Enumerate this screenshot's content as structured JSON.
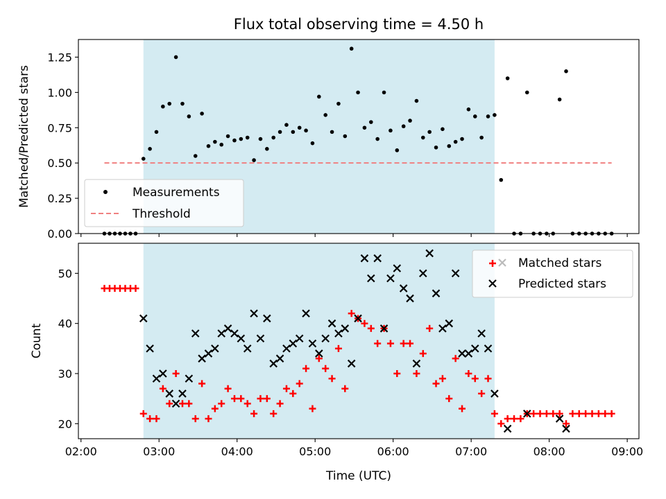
{
  "title": "Flux total observing time = 4.50 h",
  "xlabel": "Time (UTC)",
  "x_tick_labels": [
    "02:00",
    "03:00",
    "04:00",
    "05:00",
    "06:00",
    "07:00",
    "08:00",
    "09:00"
  ],
  "highlight_span": {
    "start": "02:48",
    "end": "07:18",
    "color": "#add8e6"
  },
  "chart_data": [
    {
      "type": "scatter",
      "ylabel": "Matched/Predicted stars",
      "xlim": [
        "01:58",
        "09:09"
      ],
      "ylim": [
        0,
        1.375
      ],
      "y_ticks": [
        0.0,
        0.25,
        0.5,
        0.75,
        1.0,
        1.25
      ],
      "y_tick_labels": [
        "0.00",
        "0.25",
        "0.50",
        "0.75",
        "1.00",
        "1.25"
      ],
      "legend": {
        "position": "lower-left",
        "entries": [
          "Measurements",
          "Threshold"
        ]
      },
      "series": [
        {
          "name": "Measurements",
          "color": "#000000",
          "marker": "dot",
          "x": [
            "02:18",
            "02:22",
            "02:26",
            "02:30",
            "02:34",
            "02:38",
            "02:42",
            "02:48",
            "02:53",
            "02:58",
            "03:03",
            "03:08",
            "03:13",
            "03:18",
            "03:23",
            "03:28",
            "03:33",
            "03:38",
            "03:43",
            "03:48",
            "03:53",
            "03:58",
            "04:03",
            "04:08",
            "04:13",
            "04:18",
            "04:23",
            "04:28",
            "04:33",
            "04:38",
            "04:43",
            "04:48",
            "04:53",
            "04:58",
            "05:03",
            "05:08",
            "05:13",
            "05:18",
            "05:23",
            "05:28",
            "05:33",
            "05:38",
            "05:43",
            "05:48",
            "05:53",
            "05:58",
            "06:03",
            "06:08",
            "06:13",
            "06:18",
            "06:23",
            "06:28",
            "06:33",
            "06:38",
            "06:43",
            "06:48",
            "06:53",
            "06:58",
            "07:03",
            "07:08",
            "07:13",
            "07:18",
            "07:23",
            "07:28",
            "07:33",
            "07:38",
            "07:43",
            "07:48",
            "07:53",
            "07:58",
            "08:03",
            "08:08",
            "08:13",
            "08:18",
            "08:23",
            "08:28",
            "08:33",
            "08:38",
            "08:43",
            "08:48"
          ],
          "values": [
            0,
            0,
            0,
            0,
            0,
            0,
            0,
            0.53,
            0.6,
            0.72,
            0.9,
            0.92,
            1.25,
            0.92,
            0.83,
            0.55,
            0.85,
            0.62,
            0.65,
            0.63,
            0.69,
            0.66,
            0.67,
            0.68,
            0.52,
            0.67,
            0.6,
            0.68,
            0.72,
            0.77,
            0.72,
            0.75,
            0.73,
            0.64,
            0.97,
            0.84,
            0.72,
            0.92,
            0.69,
            1.31,
            1.0,
            0.75,
            0.79,
            0.67,
            1.0,
            0.73,
            0.59,
            0.76,
            0.8,
            0.94,
            0.68,
            0.72,
            0.61,
            0.74,
            0.62,
            0.65,
            0.67,
            0.88,
            0.83,
            0.68,
            0.83,
            0.84,
            0.38,
            1.1,
            0,
            0,
            1.0,
            0,
            0,
            0,
            0,
            0.95,
            1.15,
            0,
            0,
            0,
            0,
            0,
            0,
            0
          ]
        },
        {
          "name": "Threshold",
          "color": "#f08080",
          "style": "dashed",
          "x": [
            "02:18",
            "08:48"
          ],
          "values": [
            0.5,
            0.5
          ]
        }
      ]
    },
    {
      "type": "scatter",
      "ylabel": "Count",
      "xlim": [
        "01:58",
        "09:09"
      ],
      "ylim": [
        17,
        56
      ],
      "y_ticks": [
        20,
        30,
        40,
        50
      ],
      "y_tick_labels": [
        "20",
        "30",
        "40",
        "50"
      ],
      "legend": {
        "position": "top-right",
        "entries": [
          "Matched stars",
          "Predicted stars"
        ]
      },
      "series": [
        {
          "name": "Matched stars",
          "color": "#ff0000",
          "marker": "plus",
          "x": [
            "02:18",
            "02:22",
            "02:26",
            "02:30",
            "02:34",
            "02:38",
            "02:42",
            "02:48",
            "02:53",
            "02:58",
            "03:03",
            "03:08",
            "03:13",
            "03:18",
            "03:23",
            "03:28",
            "03:33",
            "03:38",
            "03:43",
            "03:48",
            "03:53",
            "03:58",
            "04:03",
            "04:08",
            "04:13",
            "04:18",
            "04:23",
            "04:28",
            "04:33",
            "04:38",
            "04:43",
            "04:48",
            "04:53",
            "04:58",
            "05:03",
            "05:08",
            "05:13",
            "05:18",
            "05:23",
            "05:28",
            "05:33",
            "05:38",
            "05:43",
            "05:48",
            "05:53",
            "05:58",
            "06:03",
            "06:08",
            "06:13",
            "06:18",
            "06:23",
            "06:28",
            "06:33",
            "06:38",
            "06:43",
            "06:48",
            "06:53",
            "06:58",
            "07:03",
            "07:08",
            "07:13",
            "07:18",
            "07:23",
            "07:28",
            "07:33",
            "07:38",
            "07:43",
            "07:48",
            "07:53",
            "07:58",
            "08:03",
            "08:08",
            "08:13",
            "08:18",
            "08:23",
            "08:28",
            "08:33",
            "08:38",
            "08:43",
            "08:48"
          ],
          "values": [
            47,
            47,
            47,
            47,
            47,
            47,
            47,
            22,
            21,
            21,
            27,
            24,
            30,
            24,
            24,
            21,
            28,
            21,
            23,
            24,
            27,
            25,
            25,
            24,
            22,
            25,
            25,
            22,
            24,
            27,
            26,
            28,
            31,
            23,
            33,
            31,
            29,
            35,
            27,
            42,
            41,
            40,
            39,
            36,
            39,
            36,
            30,
            36,
            36,
            30,
            34,
            39,
            28,
            29,
            25,
            33,
            23,
            30,
            29,
            26,
            29,
            22,
            20,
            21,
            21,
            21,
            22,
            22,
            22,
            22,
            22,
            22,
            20,
            22,
            22,
            22,
            22,
            22,
            22,
            22
          ]
        },
        {
          "name": "Predicted stars",
          "color": "#000000",
          "marker": "x",
          "x": [
            "02:48",
            "02:53",
            "02:58",
            "03:03",
            "03:08",
            "03:13",
            "03:18",
            "03:23",
            "03:28",
            "03:33",
            "03:38",
            "03:43",
            "03:48",
            "03:53",
            "03:58",
            "04:03",
            "04:08",
            "04:13",
            "04:18",
            "04:23",
            "04:28",
            "04:33",
            "04:38",
            "04:43",
            "04:48",
            "04:53",
            "04:58",
            "05:03",
            "05:08",
            "05:13",
            "05:18",
            "05:23",
            "05:28",
            "05:33",
            "05:38",
            "05:43",
            "05:48",
            "05:53",
            "05:58",
            "06:03",
            "06:08",
            "06:13",
            "06:18",
            "06:23",
            "06:28",
            "06:33",
            "06:38",
            "06:43",
            "06:48",
            "06:53",
            "06:58",
            "07:03",
            "07:08",
            "07:13",
            "07:18",
            "07:28",
            "07:43",
            "08:08",
            "08:13"
          ],
          "values": [
            41,
            35,
            29,
            30,
            26,
            24,
            26,
            29,
            38,
            33,
            34,
            35,
            38,
            39,
            38,
            37,
            35,
            42,
            37,
            41,
            32,
            33,
            35,
            36,
            37,
            42,
            36,
            34,
            37,
            40,
            38,
            39,
            32,
            41,
            53,
            49,
            53,
            39,
            49,
            51,
            47,
            45,
            32,
            50,
            54,
            46,
            39,
            40,
            50,
            34,
            34,
            35,
            38,
            35,
            26,
            19,
            22,
            21,
            19
          ]
        }
      ]
    }
  ]
}
